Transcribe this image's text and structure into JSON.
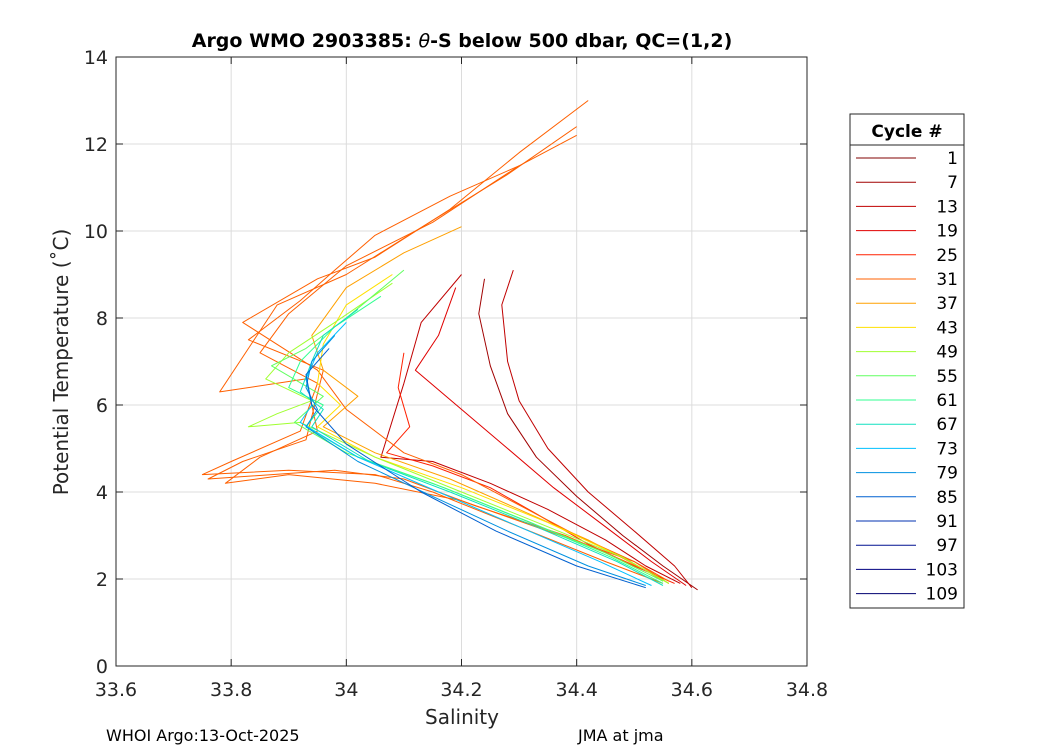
{
  "chart_data": {
    "type": "line",
    "title_prefix": "Argo WMO 2903385: ",
    "title_theta": "θ",
    "title_suffix": "-S below 500 dbar,  QC=(1,2)",
    "xlabel": "Salinity",
    "ylabel": "Potential Temperature (˚C)",
    "xlim": [
      33.6,
      34.8
    ],
    "ylim": [
      0,
      14
    ],
    "xticks": [
      "33.6",
      "33.8",
      "34",
      "34.2",
      "34.4",
      "34.6",
      "34.8"
    ],
    "yticks": [
      "0",
      "2",
      "4",
      "6",
      "8",
      "10",
      "12",
      "14"
    ],
    "grid": true,
    "legend": {
      "title": "Cycle #",
      "placement": "outside-right",
      "entries": [
        {
          "label": "1",
          "color": "#800000"
        },
        {
          "label": "7",
          "color": "#a00000"
        },
        {
          "label": "13",
          "color": "#c00000"
        },
        {
          "label": "19",
          "color": "#e00000"
        },
        {
          "label": "25",
          "color": "#ff2000"
        },
        {
          "label": "31",
          "color": "#ff6000"
        },
        {
          "label": "37",
          "color": "#ffa000"
        },
        {
          "label": "43",
          "color": "#ffe000"
        },
        {
          "label": "49",
          "color": "#a0ff30"
        },
        {
          "label": "55",
          "color": "#60ff60"
        },
        {
          "label": "61",
          "color": "#30ff90"
        },
        {
          "label": "67",
          "color": "#10e0c0"
        },
        {
          "label": "73",
          "color": "#00c0ff"
        },
        {
          "label": "79",
          "color": "#0090e0"
        },
        {
          "label": "85",
          "color": "#0060d0"
        },
        {
          "label": "91",
          "color": "#0030b0"
        },
        {
          "label": "97",
          "color": "#001090"
        },
        {
          "label": "103",
          "color": "#000080"
        },
        {
          "label": "109",
          "color": "#000070"
        }
      ]
    },
    "series": [
      {
        "color": "#a00000",
        "x": [
          34.24,
          34.23,
          34.25,
          34.28,
          34.33,
          34.4,
          34.48,
          34.55,
          34.61
        ],
        "y": [
          8.9,
          8.1,
          6.9,
          5.8,
          4.8,
          3.9,
          3.0,
          2.3,
          1.75
        ]
      },
      {
        "color": "#c00000",
        "x": [
          34.29,
          34.27,
          34.28,
          34.3,
          34.35,
          34.42,
          34.5,
          34.57,
          34.6
        ],
        "y": [
          9.1,
          8.3,
          7.0,
          6.1,
          5.0,
          4.0,
          3.1,
          2.3,
          1.8
        ]
      },
      {
        "color": "#e00000",
        "x": [
          34.19,
          34.16,
          34.12,
          34.2,
          34.28,
          34.36,
          34.45,
          34.53,
          34.59
        ],
        "y": [
          8.7,
          7.6,
          6.8,
          5.9,
          5.0,
          4.1,
          3.2,
          2.4,
          1.85
        ]
      },
      {
        "color": "#c00000",
        "x": [
          34.2,
          34.13,
          34.1,
          34.06,
          34.15,
          34.25,
          34.35,
          34.45,
          34.52,
          34.58
        ],
        "y": [
          9.0,
          7.9,
          6.5,
          4.8,
          4.7,
          4.2,
          3.6,
          2.9,
          2.3,
          1.9
        ]
      },
      {
        "color": "#ff2000",
        "x": [
          34.1,
          34.09,
          34.11,
          34.07,
          34.15,
          34.25,
          34.33,
          34.42,
          34.5,
          34.57
        ],
        "y": [
          7.2,
          6.4,
          5.5,
          4.9,
          4.6,
          4.1,
          3.5,
          2.8,
          2.3,
          1.9
        ]
      },
      {
        "color": "#ff6000",
        "x": [
          34.42,
          34.3,
          34.18,
          34.05,
          33.95,
          33.82,
          33.95,
          34.0,
          34.1,
          34.2,
          34.3,
          34.4,
          34.5,
          34.56
        ],
        "y": [
          13.0,
          11.8,
          10.5,
          9.4,
          8.9,
          7.9,
          6.8,
          5.9,
          4.9,
          4.4,
          3.7,
          3.0,
          2.4,
          1.9
        ]
      },
      {
        "color": "#ff6000",
        "x": [
          34.4,
          34.3,
          34.15,
          34.0,
          33.9,
          33.85,
          33.95,
          33.92,
          33.8,
          33.75,
          33.9,
          34.05,
          34.15,
          34.3,
          34.45,
          34.55
        ],
        "y": [
          12.2,
          11.5,
          10.2,
          9.2,
          8.1,
          7.2,
          6.5,
          5.4,
          4.7,
          4.4,
          4.5,
          4.4,
          4.0,
          3.2,
          2.4,
          1.9
        ]
      },
      {
        "color": "#ff6000",
        "x": [
          34.4,
          34.28,
          34.12,
          34.0,
          33.88,
          33.78,
          33.93,
          33.95,
          33.85,
          33.79,
          33.9,
          34.05,
          34.2,
          34.35,
          34.5,
          34.56
        ],
        "y": [
          12.4,
          11.3,
          10.0,
          9.0,
          8.3,
          6.3,
          6.6,
          5.4,
          4.8,
          4.2,
          4.4,
          4.2,
          3.8,
          3.1,
          2.4,
          1.95
        ]
      },
      {
        "color": "#ff6000",
        "x": [
          34.3,
          34.18,
          34.05,
          33.98,
          33.92,
          33.83,
          33.96,
          33.93,
          33.82,
          33.76,
          33.98,
          34.1,
          34.22,
          34.38,
          34.52,
          34.55
        ],
        "y": [
          11.5,
          10.8,
          9.9,
          9.1,
          8.4,
          7.5,
          6.8,
          5.2,
          4.7,
          4.3,
          4.5,
          4.3,
          3.7,
          3.0,
          2.2,
          1.95
        ]
      },
      {
        "color": "#ffa000",
        "x": [
          34.2,
          34.1,
          34.0,
          33.94,
          33.96,
          34.02,
          33.96,
          34.05,
          34.18,
          34.3,
          34.42,
          34.52,
          34.56
        ],
        "y": [
          10.1,
          9.5,
          8.7,
          7.6,
          6.8,
          6.2,
          5.5,
          4.9,
          4.3,
          3.6,
          2.9,
          2.2,
          1.9
        ]
      },
      {
        "color": "#ffe000",
        "x": [
          34.08,
          34.0,
          33.96,
          33.95,
          33.99,
          33.95,
          34.05,
          34.2,
          34.35,
          34.48,
          34.56
        ],
        "y": [
          9.0,
          8.3,
          7.4,
          6.5,
          6.0,
          5.5,
          4.8,
          4.1,
          3.3,
          2.5,
          1.9
        ]
      },
      {
        "color": "#a0ff30",
        "x": [
          34.08,
          33.98,
          33.9,
          33.86,
          33.94,
          33.88,
          33.83,
          33.92,
          34.05,
          34.2,
          34.35,
          34.48,
          34.56
        ],
        "y": [
          8.8,
          7.9,
          7.2,
          6.6,
          6.1,
          5.8,
          5.5,
          5.6,
          4.8,
          4.0,
          3.2,
          2.5,
          1.9
        ]
      },
      {
        "color": "#60ff60",
        "x": [
          34.1,
          34.0,
          33.93,
          33.87,
          33.96,
          33.91,
          34.0,
          34.15,
          34.3,
          34.45,
          34.55
        ],
        "y": [
          9.1,
          8.0,
          7.3,
          6.9,
          6.2,
          5.6,
          4.9,
          4.2,
          3.4,
          2.6,
          1.95
        ]
      },
      {
        "color": "#30ff90",
        "x": [
          34.06,
          33.98,
          33.92,
          33.9,
          33.96,
          33.93,
          34.02,
          34.17,
          34.32,
          34.46,
          34.55
        ],
        "y": [
          8.5,
          7.8,
          7.0,
          6.4,
          6.0,
          5.5,
          4.8,
          4.1,
          3.3,
          2.5,
          1.9
        ]
      },
      {
        "color": "#10e0c0",
        "x": [
          34.02,
          33.96,
          33.94,
          33.92,
          33.96,
          33.94,
          34.04,
          34.18,
          34.33,
          34.47,
          34.55
        ],
        "y": [
          8.2,
          7.6,
          7.0,
          6.3,
          5.9,
          5.5,
          4.7,
          4.0,
          3.2,
          2.4,
          1.85
        ]
      },
      {
        "color": "#00c0ff",
        "x": [
          34.0,
          33.95,
          33.93,
          33.94,
          33.92,
          34.02,
          34.16,
          34.3,
          34.44,
          34.53
        ],
        "y": [
          7.9,
          7.2,
          6.6,
          6.0,
          5.6,
          4.8,
          4.0,
          3.2,
          2.4,
          1.85
        ]
      },
      {
        "color": "#0090e0",
        "x": [
          33.98,
          33.94,
          33.93,
          33.95,
          33.93,
          34.02,
          34.15,
          34.28,
          34.42,
          34.52
        ],
        "y": [
          7.6,
          7.0,
          6.4,
          5.9,
          5.5,
          4.7,
          3.9,
          3.1,
          2.3,
          1.85
        ]
      },
      {
        "color": "#0060d0",
        "x": [
          33.97,
          33.93,
          33.94,
          34.0,
          34.13,
          34.26,
          34.4,
          34.52
        ],
        "y": [
          7.3,
          6.7,
          6.0,
          5.1,
          4.0,
          3.1,
          2.3,
          1.8
        ]
      }
    ]
  },
  "footer": {
    "left": "WHOI Argo:13-Oct-2025",
    "right": "JMA at jma"
  }
}
